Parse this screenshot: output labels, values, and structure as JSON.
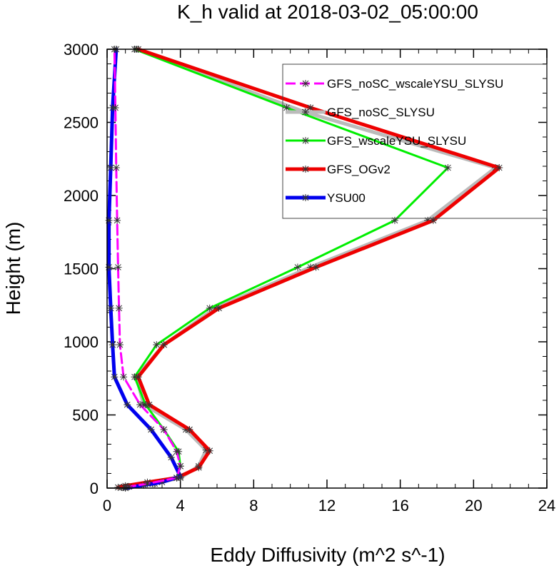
{
  "chart_data": {
    "type": "line",
    "title": "K_h valid at 2018-03-02_05:00:00",
    "xlabel": "Eddy Diffusivity (m^2 s^-1)",
    "ylabel": "Height (m)",
    "xlim": [
      0,
      24
    ],
    "ylim": [
      0,
      3000
    ],
    "xticks": [
      0,
      4,
      8,
      12,
      16,
      20,
      24
    ],
    "yticks": [
      0,
      500,
      1000,
      1500,
      2000,
      2500,
      3000
    ],
    "grid": false,
    "legend_position": "top-right",
    "series": [
      {
        "name": "GFS_noSC_wscaleYSU_SLYSU",
        "color": "#ff00ff",
        "dash": "dashed",
        "width": 3,
        "points": [
          [
            1.0,
            5
          ],
          [
            1.2,
            10
          ],
          [
            2.2,
            30
          ],
          [
            3.8,
            70
          ],
          [
            4.0,
            150
          ],
          [
            3.8,
            250
          ],
          [
            3.1,
            400
          ],
          [
            1.8,
            570
          ],
          [
            0.9,
            760
          ],
          [
            0.7,
            980
          ],
          [
            0.65,
            1230
          ],
          [
            0.6,
            1510
          ],
          [
            0.55,
            1830
          ],
          [
            0.5,
            2190
          ],
          [
            0.45,
            2600
          ],
          [
            0.4,
            3000
          ]
        ]
      },
      {
        "name": "GFS_noSC_SLYSU",
        "color": "#bbbbbb",
        "dash": "solid",
        "width": 5,
        "points": [
          [
            0.8,
            5
          ],
          [
            1.1,
            10
          ],
          [
            2.5,
            30
          ],
          [
            4.0,
            70
          ],
          [
            5.0,
            150
          ],
          [
            5.4,
            260
          ],
          [
            4.3,
            400
          ],
          [
            2.0,
            570
          ],
          [
            1.6,
            760
          ],
          [
            3.1,
            980
          ],
          [
            5.9,
            1230
          ],
          [
            11.1,
            1510
          ],
          [
            17.5,
            1830
          ],
          [
            21.2,
            2190
          ],
          [
            10.8,
            2570
          ],
          [
            1.6,
            3000
          ]
        ]
      },
      {
        "name": "GFS_wscaleYSU_SLYSU",
        "color": "#00ee00",
        "dash": "solid",
        "width": 3,
        "points": [
          [
            0.9,
            5
          ],
          [
            1.2,
            10
          ],
          [
            2.6,
            30
          ],
          [
            3.8,
            70
          ],
          [
            4.0,
            150
          ],
          [
            3.9,
            250
          ],
          [
            3.1,
            400
          ],
          [
            2.1,
            570
          ],
          [
            1.5,
            760
          ],
          [
            2.7,
            980
          ],
          [
            5.6,
            1230
          ],
          [
            10.4,
            1510
          ],
          [
            15.7,
            1830
          ],
          [
            18.6,
            2190
          ],
          [
            9.8,
            2600
          ],
          [
            1.5,
            3000
          ]
        ]
      },
      {
        "name": "GFS_OGv2",
        "color": "#ee0000",
        "dash": "solid",
        "width": 5,
        "points": [
          [
            0.6,
            5
          ],
          [
            1.0,
            15
          ],
          [
            2.2,
            40
          ],
          [
            3.8,
            70
          ],
          [
            5.0,
            140
          ],
          [
            5.6,
            255
          ],
          [
            4.5,
            400
          ],
          [
            2.3,
            570
          ],
          [
            1.7,
            760
          ],
          [
            3.1,
            980
          ],
          [
            6.1,
            1230
          ],
          [
            11.4,
            1510
          ],
          [
            17.8,
            1830
          ],
          [
            21.4,
            2190
          ],
          [
            11.1,
            2600
          ],
          [
            1.7,
            3000
          ]
        ]
      },
      {
        "name": "YSU00",
        "color": "#0000ee",
        "dash": "solid",
        "width": 5,
        "points": [
          [
            1.0,
            0
          ],
          [
            2.0,
            20
          ],
          [
            3.0,
            40
          ],
          [
            4.0,
            80
          ],
          [
            3.5,
            210
          ],
          [
            2.4,
            400
          ],
          [
            1.1,
            570
          ],
          [
            0.4,
            760
          ],
          [
            0.3,
            980
          ],
          [
            0.2,
            1230
          ],
          [
            0.1,
            1510
          ],
          [
            0.1,
            1830
          ],
          [
            0.2,
            2190
          ],
          [
            0.3,
            2600
          ],
          [
            0.5,
            3000
          ]
        ]
      }
    ]
  }
}
